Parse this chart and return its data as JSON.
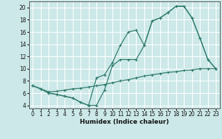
{
  "xlabel": "Humidex (Indice chaleur)",
  "background_color": "#cce8e8",
  "grid_color": "#ffffff",
  "line_color": "#2d7a6a",
  "xlim": [
    -0.5,
    23.5
  ],
  "ylim": [
    3.5,
    21.0
  ],
  "xticks": [
    0,
    1,
    2,
    3,
    4,
    5,
    6,
    7,
    8,
    9,
    10,
    11,
    12,
    13,
    14,
    15,
    16,
    17,
    18,
    19,
    20,
    21,
    22,
    23
  ],
  "yticks": [
    4,
    6,
    8,
    10,
    12,
    14,
    16,
    18,
    20
  ],
  "line1_x": [
    0,
    1,
    2,
    3,
    4,
    5,
    6,
    7,
    8,
    9,
    10,
    11,
    12,
    13,
    14,
    15,
    16,
    17,
    18,
    19,
    20,
    21,
    22,
    23
  ],
  "line1_y": [
    7.2,
    6.7,
    6.0,
    5.8,
    5.5,
    5.2,
    4.5,
    4.0,
    8.5,
    9.0,
    11.0,
    13.8,
    16.0,
    16.3,
    13.8,
    17.8,
    18.3,
    19.2,
    20.2,
    20.2,
    18.3,
    15.0,
    11.5,
    10.0
  ],
  "line2_x": [
    0,
    1,
    2,
    3,
    4,
    5,
    6,
    7,
    8,
    9,
    10,
    11,
    12,
    13,
    14,
    15,
    16,
    17,
    18,
    19,
    20,
    21,
    22,
    23
  ],
  "line2_y": [
    7.2,
    6.7,
    6.0,
    5.8,
    5.5,
    5.2,
    4.5,
    4.0,
    4.0,
    6.5,
    10.5,
    11.5,
    11.5,
    11.5,
    13.8,
    17.8,
    18.3,
    19.2,
    20.2,
    20.2,
    18.3,
    15.0,
    11.5,
    10.0
  ],
  "line3_x": [
    0,
    1,
    2,
    3,
    4,
    5,
    6,
    7,
    8,
    9,
    10,
    11,
    12,
    13,
    14,
    15,
    16,
    17,
    18,
    19,
    20,
    21,
    22,
    23
  ],
  "line3_y": [
    7.2,
    6.7,
    6.2,
    6.3,
    6.5,
    6.7,
    6.8,
    7.0,
    7.2,
    7.4,
    7.7,
    8.0,
    8.2,
    8.5,
    8.8,
    9.0,
    9.2,
    9.4,
    9.5,
    9.7,
    9.8,
    10.0,
    10.0,
    10.0
  ],
  "tick_fontsize": 5.5,
  "xlabel_fontsize": 6.5
}
